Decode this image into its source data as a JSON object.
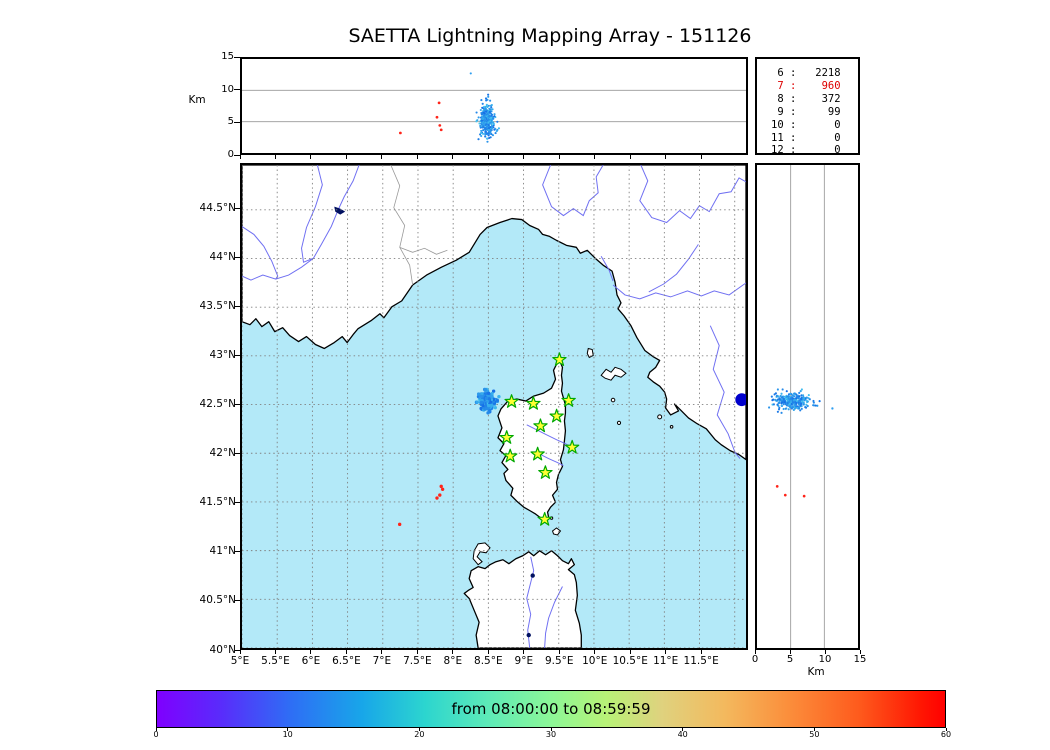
{
  "chart_data": {
    "type": "scatter",
    "title": "SAETTA Lightning Mapping Array - 151126",
    "map_panel": {
      "lon_range": [
        5.0,
        12.16
      ],
      "lat_range": [
        40.0,
        44.96
      ],
      "lon_ticks": [
        5,
        5.5,
        6,
        6.5,
        7,
        7.5,
        8,
        8.5,
        9,
        9.5,
        10,
        10.5,
        11,
        11.5
      ],
      "lon_tick_labels": [
        "5°E",
        "5.5°E",
        "6°E",
        "6.5°E",
        "7°E",
        "7.5°E",
        "8°E",
        "8.5°E",
        "9°E",
        "9.5°E",
        "10°E",
        "10.5°E",
        "11°E",
        "11.5°E"
      ],
      "lon_grid_extra": [
        12
      ],
      "lat_ticks": [
        40,
        40.5,
        41,
        41.5,
        42,
        42.5,
        43,
        43.5,
        44,
        44.5
      ],
      "lat_tick_labels": [
        "40°N",
        "40.5°N",
        "41°N",
        "41.5°N",
        "42°N",
        "42.5°N",
        "43°N",
        "43.5°N",
        "44°N",
        "44.5°N"
      ],
      "grid_style": "dotted",
      "sea_color": "#b3e9f8",
      "land_color": "#ffffff"
    },
    "altitude_axis": {
      "label_top": "Km",
      "label_right": "Km",
      "ticks": [
        0,
        5,
        10,
        15
      ],
      "range_km": [
        0,
        15
      ],
      "gridlines_km": [
        5,
        10
      ]
    },
    "legend_counts": {
      "rows": [
        {
          "level": "6",
          "count": "2218",
          "highlight": false
        },
        {
          "level": "7",
          "count": "960",
          "highlight": true
        },
        {
          "level": "8",
          "count": "372",
          "highlight": false
        },
        {
          "level": "9",
          "count": "99",
          "highlight": false
        },
        {
          "level": "10",
          "count": "0",
          "highlight": false
        },
        {
          "level": "11",
          "count": "0",
          "highlight": false
        },
        {
          "level": "12",
          "count": "0",
          "highlight": false
        }
      ],
      "highlight_color": "#dd0000"
    },
    "stations": {
      "marker": "star",
      "fill": "#ffff33",
      "edge": "#00a800",
      "lonlat": [
        [
          9.51,
          42.96
        ],
        [
          8.83,
          42.53
        ],
        [
          9.14,
          42.51
        ],
        [
          9.64,
          42.54
        ],
        [
          9.47,
          42.38
        ],
        [
          9.24,
          42.28
        ],
        [
          8.76,
          42.16
        ],
        [
          9.69,
          42.06
        ],
        [
          8.81,
          41.97
        ],
        [
          9.2,
          41.99
        ],
        [
          9.31,
          41.8
        ],
        [
          9.3,
          41.32
        ]
      ]
    },
    "storm_cluster": {
      "lon_mean": 8.49,
      "lon_sigma": 0.05,
      "lat_mean": 42.535,
      "lat_sigma": 0.04,
      "alt_mean_km": 5.0,
      "alt_sigma_km": 1.4,
      "alt_clip_km": [
        1.2,
        9.3
      ],
      "n_sources": 300,
      "color_early": "#156ee6",
      "color_late": "#46c8f0"
    },
    "outlier_points": {
      "top_panel_lon_alt": [
        [
          8.25,
          12.7
        ]
      ],
      "right_panel_alt_lat": [
        [
          11.2,
          42.46
        ]
      ]
    },
    "edge_flash": {
      "lon": 12.1,
      "lat": 42.55,
      "color": "#0000cc",
      "radius_px": 6.5
    },
    "red_points": {
      "color": "#ff2419",
      "map_lonlat": [
        [
          7.83,
          41.66
        ],
        [
          7.85,
          41.63
        ],
        [
          7.81,
          41.57
        ],
        [
          7.77,
          41.54
        ],
        [
          7.24,
          41.27
        ]
      ],
      "top_lon_alt": [
        [
          7.25,
          3.2
        ],
        [
          7.8,
          8.0
        ],
        [
          7.77,
          5.7
        ],
        [
          7.81,
          4.4
        ],
        [
          7.83,
          3.7
        ]
      ],
      "right_alt_lat": [
        [
          3.0,
          41.66
        ],
        [
          4.2,
          41.57
        ],
        [
          7.0,
          41.56
        ]
      ]
    },
    "colorbar": {
      "label": "from 08:00:00 to 08:59:59",
      "ticks": [
        "0",
        "10",
        "20",
        "30",
        "40",
        "50",
        "60"
      ],
      "range_minutes": [
        0,
        60
      ],
      "colormap": "rainbow"
    }
  }
}
